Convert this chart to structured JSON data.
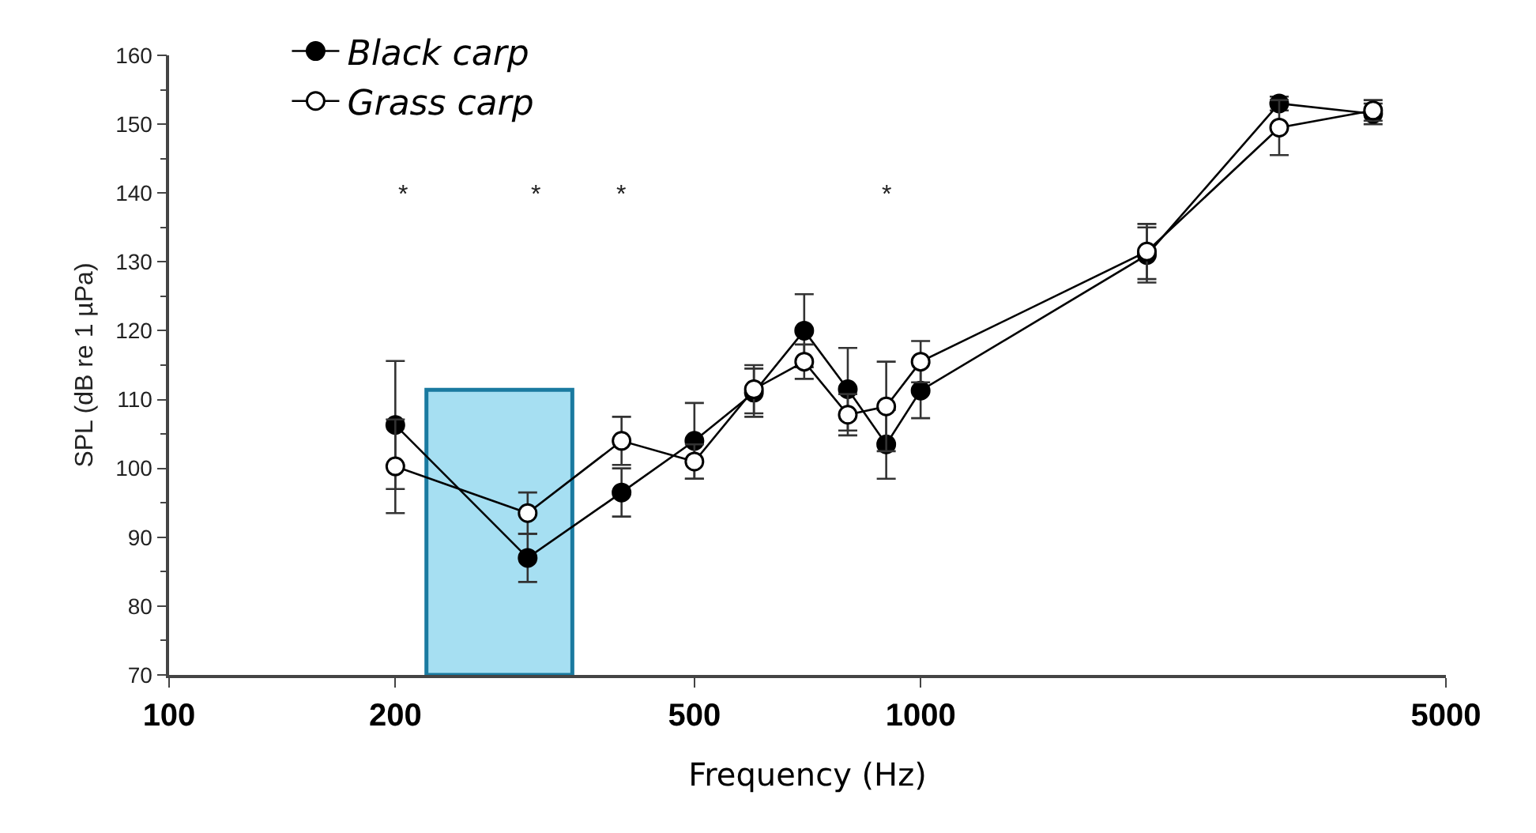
{
  "chart_data": {
    "type": "line",
    "xlabel": "Frequency (Hz)",
    "ylabel": "SPL (dB re 1 µPa)",
    "x": [
      200,
      300,
      400,
      500,
      600,
      700,
      800,
      900,
      1000,
      2000,
      3000,
      4000
    ],
    "series": [
      {
        "name": "Black carp",
        "color": "#000000",
        "values": [
          106.3,
          87,
          96.5,
          104,
          111,
          120,
          111.5,
          103.5,
          111.3,
          131,
          153,
          151.5
        ],
        "errors": [
          9.3,
          3.5,
          3.5,
          5.5,
          3.5,
          5.3,
          6,
          5,
          4,
          4,
          1,
          1.5
        ]
      },
      {
        "name": "Grass carp",
        "color": "#000000",
        "values": [
          100.3,
          93.5,
          104,
          101,
          111.5,
          115.5,
          107.8,
          109,
          115.5,
          131.5,
          149.5,
          152
        ],
        "errors": [
          6.8,
          3,
          3.5,
          2.5,
          3.5,
          2.5,
          3,
          6.5,
          3,
          4,
          4,
          1.5
        ]
      }
    ],
    "log": "x",
    "xlim": [
      100,
      5000
    ],
    "xticks": [
      100,
      200,
      500,
      1000,
      5000
    ],
    "ylim": [
      70,
      160
    ],
    "yticks": [
      70,
      80,
      90,
      100,
      110,
      120,
      130,
      140,
      150,
      160
    ],
    "grid": false,
    "legend": "top left",
    "marker": "circle",
    "line_style": "solid",
    "annotations": [
      "*",
      "*",
      "*",
      "*"
    ],
    "bands": [
      {
        "axis": "x",
        "from": 220,
        "to": 344,
        "color": "#a6dff2"
      }
    ]
  }
}
